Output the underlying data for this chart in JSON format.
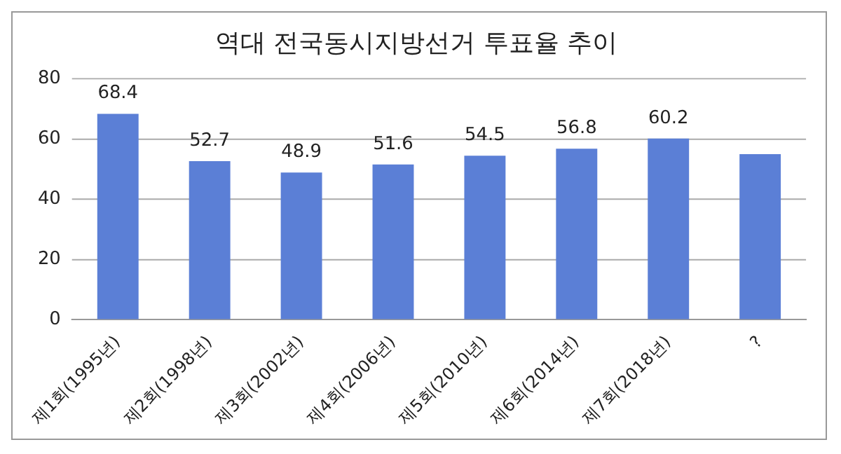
{
  "chart_data": {
    "type": "bar",
    "title": "역대 전국동시지방선거 투표율 추이",
    "categories": [
      "제1회(1995년)",
      "제2회(1998년)",
      "제3회(2002년)",
      "제4회(2006년)",
      "제5회(2010년)",
      "제6회(2014년)",
      "제7회(2018년)",
      "?"
    ],
    "values": [
      68.4,
      52.7,
      48.9,
      51.6,
      54.5,
      56.8,
      60.2,
      55
    ],
    "value_labels": [
      "68.4",
      "52.7",
      "48.9",
      "51.6",
      "54.5",
      "56.8",
      "60.2",
      null
    ],
    "color": "#5b7fd6",
    "ylim": [
      0,
      80
    ],
    "yticks": [
      0,
      20,
      40,
      60,
      80
    ],
    "grid": "y",
    "legend": false
  }
}
